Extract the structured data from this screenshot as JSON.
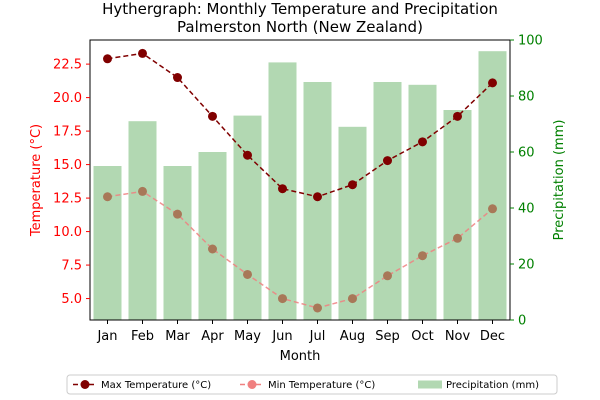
{
  "chart_data": {
    "type": "bar+line",
    "title_lines": [
      "Hythergraph: Monthly Temperature and Precipitation",
      "Palmerston North (New Zealand)"
    ],
    "xlabel": "Month",
    "ylabel_left": "Temperature (°C)",
    "ylabel_right": "Precipitation (mm)",
    "categories": [
      "Jan",
      "Feb",
      "Mar",
      "Apr",
      "May",
      "Jun",
      "Jul",
      "Aug",
      "Sep",
      "Oct",
      "Nov",
      "Dec"
    ],
    "ylim_left": [
      3.4,
      24.3
    ],
    "yticks_left": [
      "5.0",
      "7.5",
      "10.0",
      "12.5",
      "15.0",
      "17.5",
      "20.0",
      "22.5"
    ],
    "ylim_right": [
      0,
      100
    ],
    "yticks_right": [
      "0",
      "20",
      "40",
      "60",
      "80",
      "100"
    ],
    "grid": false,
    "legend_position": "bottom-center",
    "series": [
      {
        "name": "Max Temperature (°C)",
        "axis": "left",
        "kind": "line",
        "style": "dashed",
        "color": "#800000",
        "values": [
          22.9,
          23.3,
          21.5,
          18.6,
          15.7,
          13.2,
          12.6,
          13.5,
          15.3,
          16.7,
          18.6,
          21.1
        ]
      },
      {
        "name": "Min Temperature (°C)",
        "axis": "left",
        "kind": "line",
        "style": "dashed",
        "color": "#f08080",
        "values": [
          12.6,
          13.0,
          11.3,
          8.7,
          6.8,
          5.0,
          4.3,
          5.0,
          6.7,
          8.2,
          9.5,
          11.7
        ]
      },
      {
        "name": "Precipitation (mm)",
        "axis": "right",
        "kind": "bar",
        "color": "#b2d8b2",
        "values": [
          55,
          71,
          55,
          60,
          73,
          92,
          85,
          69,
          85,
          84,
          75,
          96
        ]
      }
    ],
    "colors": {
      "left_axis": "#ff0000",
      "right_axis": "#008000",
      "max_marker": "#800000",
      "min_marker": "#a87858",
      "axis_line": "#000000"
    }
  }
}
